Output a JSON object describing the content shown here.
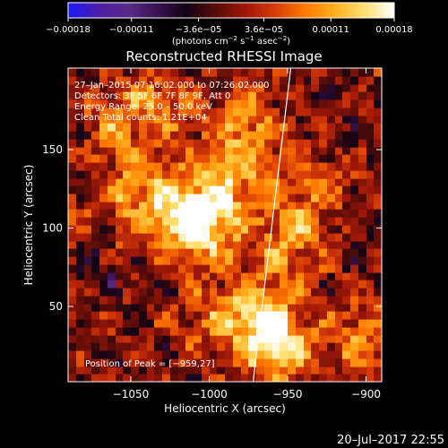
{
  "colors": {
    "background": "#000000",
    "text": "#ffffff",
    "limb_line": "#ffffff",
    "colormap": [
      "#1a1aff",
      "#4b1ea8",
      "#5a2a8a",
      "#3a1250",
      "#120414",
      "#5a0c08",
      "#a01808",
      "#d83c06",
      "#ff7a00",
      "#ffb020",
      "#ffe070",
      "#ffffff"
    ]
  },
  "chart_data": {
    "type": "heatmap",
    "title": "Reconstructed RHESSI Image",
    "xlabel": "Heliocentric X (arcsec)",
    "ylabel": "Heliocentric Y (arcsec)",
    "xlim": [
      -1090,
      -890
    ],
    "ylim": [
      2,
      202
    ],
    "xticks": [
      -1050,
      -1000,
      -950,
      -900
    ],
    "xtick_labels": [
      "−1050",
      "−1000",
      "−950",
      "−900"
    ],
    "yticks": [
      50,
      100,
      150
    ],
    "ytick_labels": [
      "50",
      "100",
      "150"
    ],
    "colorbar": {
      "range": [
        -0.00018,
        0.00018
      ],
      "tick_values": [
        -0.00018,
        -0.00011,
        -3.6e-05,
        3.6e-05,
        0.00011,
        0.00018
      ],
      "tick_labels": [
        "−0.00018",
        "−0.00011",
        "−3.6e−05",
        "3.6e−05",
        "0.00011",
        "0.00018"
      ],
      "units_prefix": "(photons cm",
      "units_sup1": "−2",
      "units_mid": " s",
      "units_sup2": "−1",
      "units_mid2": " asec",
      "units_sup3": "−2",
      "units_suffix": ")"
    },
    "info_lines": [
      "27–Jan–2015 07:16:02.000 to 07:26:02.000",
      "Detectors: 3F 5F 6F 7F 8F 9F, Att 0",
      "Energy Range: 25.0 – 50.0 keV",
      "Clean     Total counts: 1.21E+04"
    ],
    "peak_label": "Position of Peak = [−959,27]",
    "peak": {
      "x": -959,
      "y": 27
    },
    "limb_line": [
      {
        "x": -972,
        "y": 2
      },
      {
        "x": -948,
        "y": 202
      }
    ],
    "image_grid": {
      "nx": 40,
      "ny": 40,
      "min": -0.00018,
      "max": 0.00018
    },
    "emission_sources": [
      {
        "x": -1018,
        "y": 110,
        "amp": 0.0001
      },
      {
        "x": -1002,
        "y": 103,
        "amp": 0.00016
      },
      {
        "x": -1040,
        "y": 128,
        "amp": 9e-05
      },
      {
        "x": -985,
        "y": 138,
        "amp": 0.00011
      },
      {
        "x": -975,
        "y": 170,
        "amp": 8e-05
      },
      {
        "x": -1060,
        "y": 165,
        "amp": 7e-05
      },
      {
        "x": -1030,
        "y": 180,
        "amp": 8e-05
      },
      {
        "x": -959,
        "y": 27,
        "amp": 0.00017
      },
      {
        "x": -970,
        "y": 50,
        "amp": 0.0001
      },
      {
        "x": -948,
        "y": 95,
        "amp": 0.00011
      },
      {
        "x": -935,
        "y": 130,
        "amp": 7e-05
      },
      {
        "x": -905,
        "y": 30,
        "amp": 9e-05
      },
      {
        "x": -1070,
        "y": 110,
        "amp": 6e-05
      },
      {
        "x": -1000,
        "y": 45,
        "amp": 6e-05
      }
    ]
  },
  "footer": {
    "timestamp": "20–Jul–2017 22:55"
  }
}
